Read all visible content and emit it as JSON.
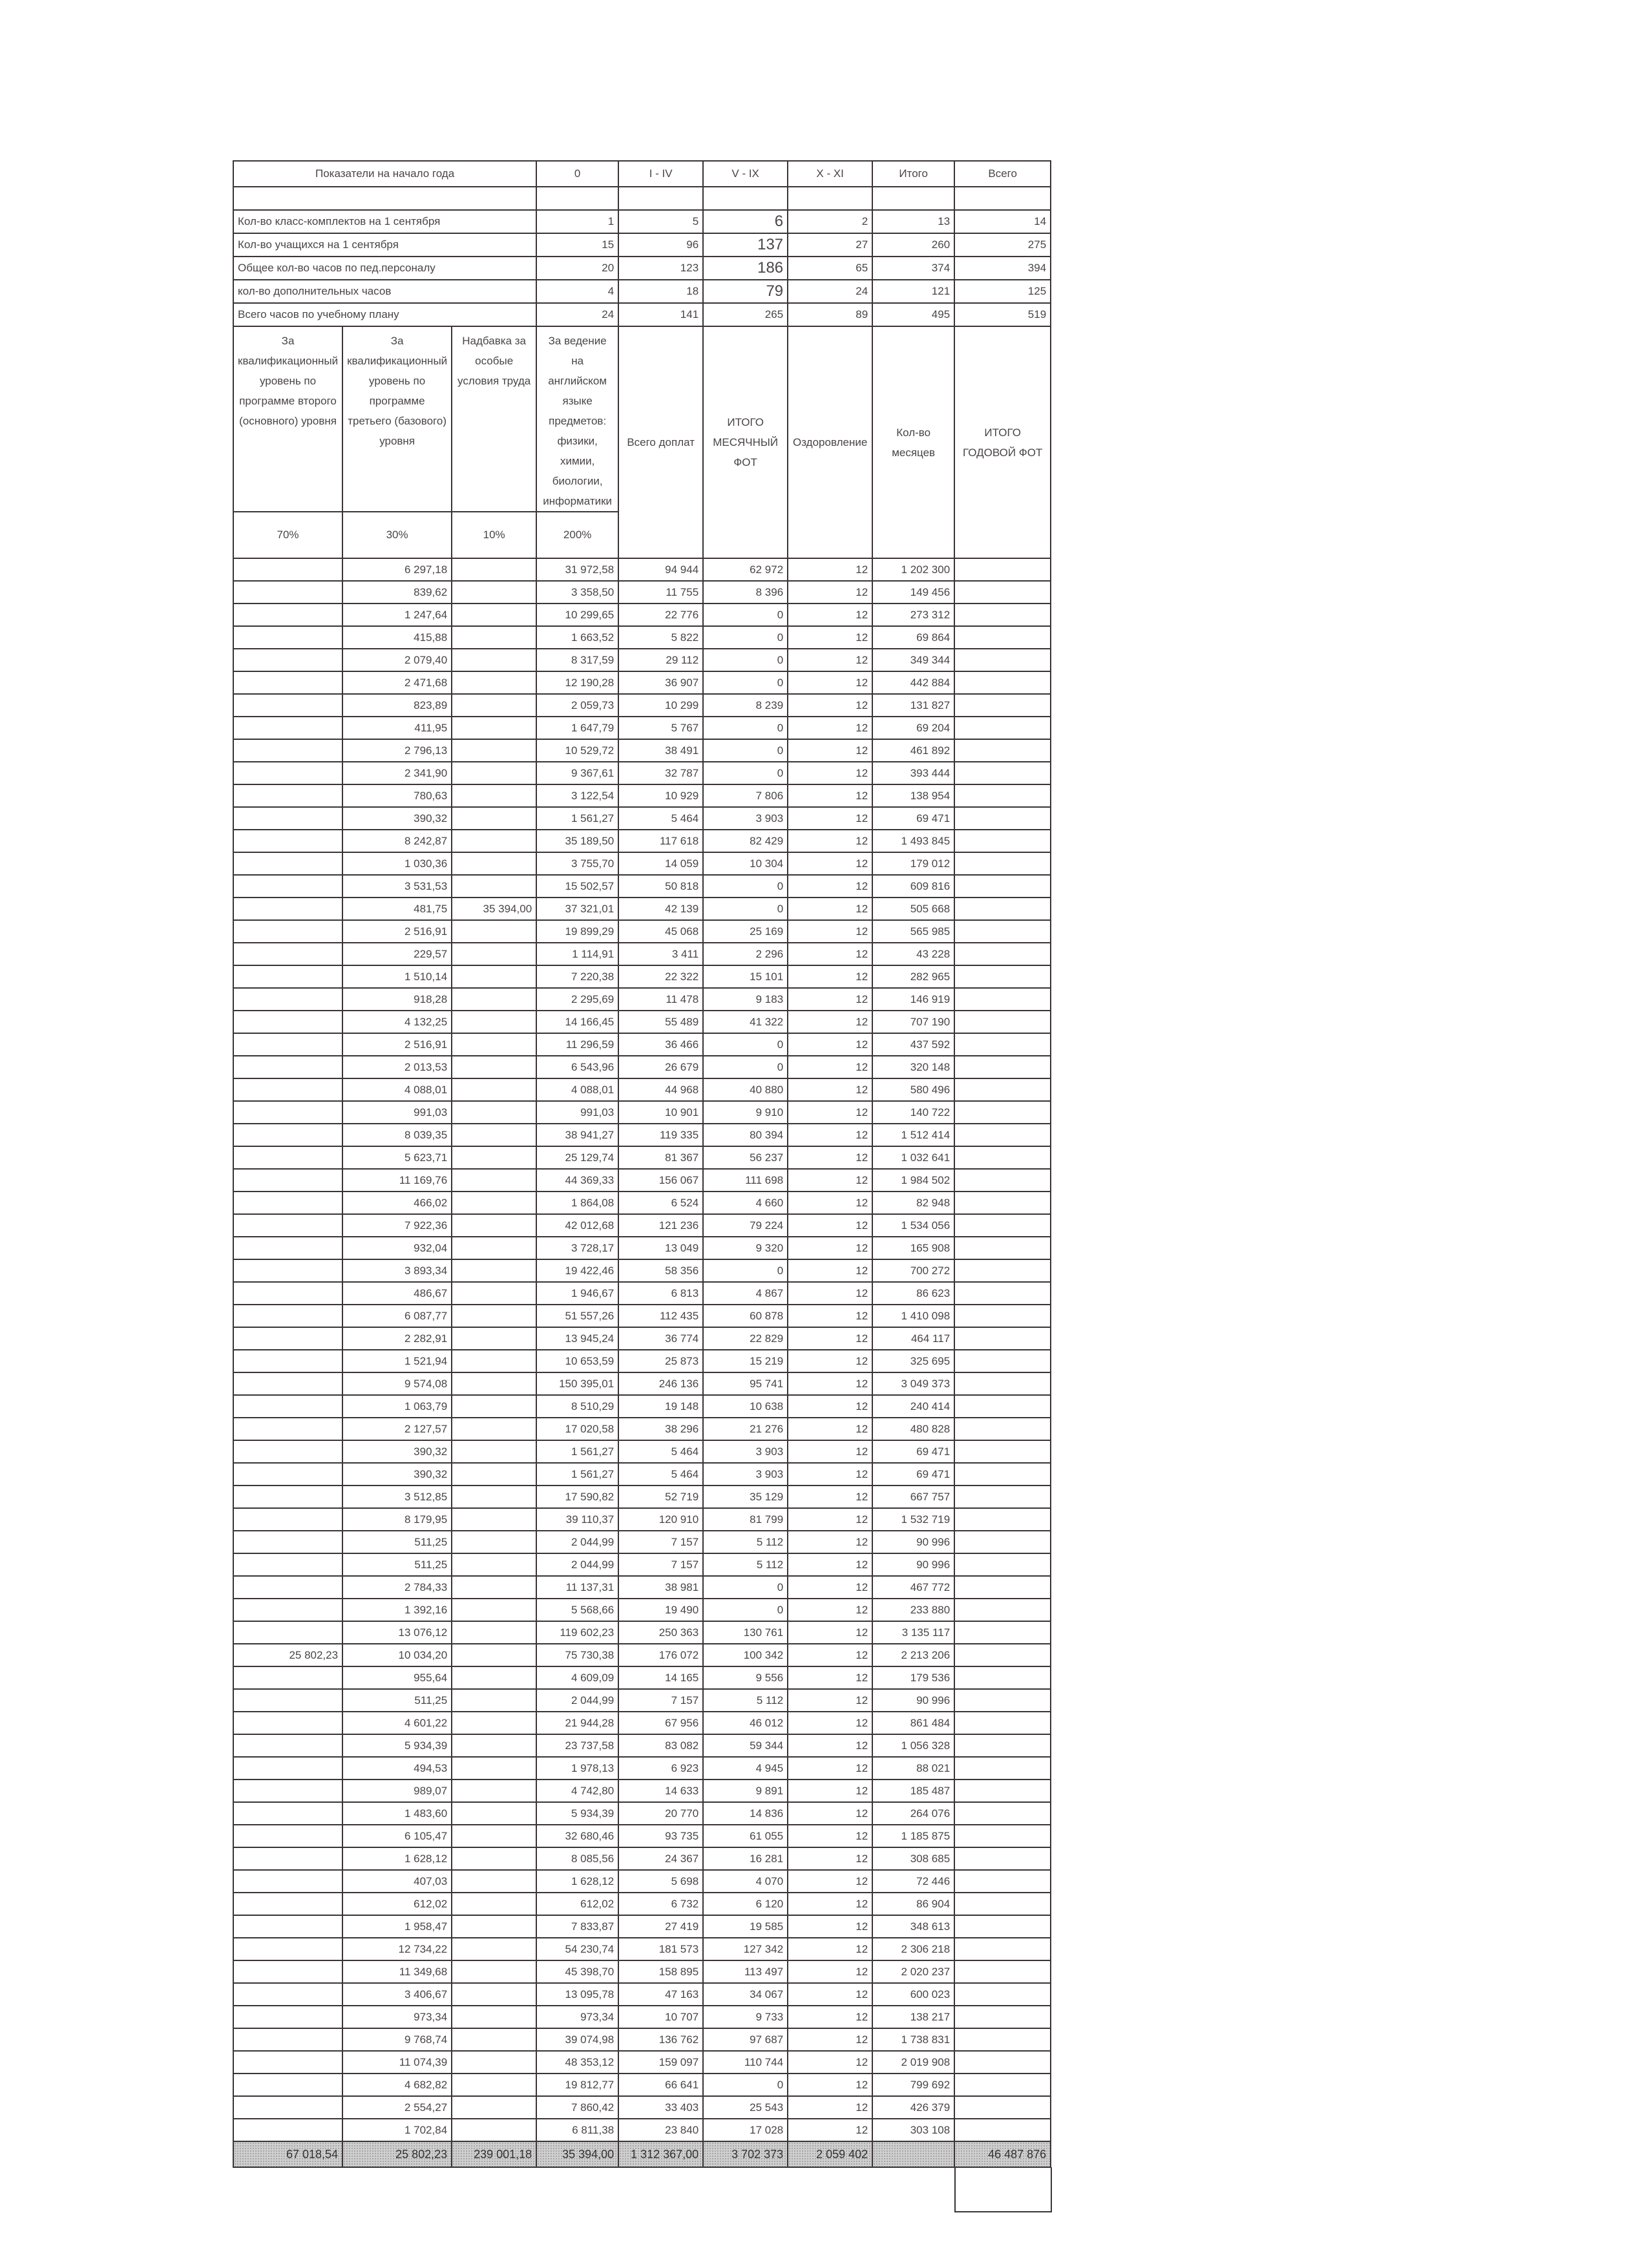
{
  "summary": {
    "headers": [
      "Показатели на начало года",
      "0",
      "I - IV",
      "V - IX",
      "X - XI",
      "Итого",
      "Всего"
    ],
    "rows": [
      {
        "label": "Кол-во класс-комплектов на 1 сентября",
        "values": [
          "1",
          "5",
          "6",
          "2",
          "13",
          "14"
        ]
      },
      {
        "label": "Кол-во учащихся на 1 сентября",
        "values": [
          "15",
          "96",
          "137",
          "27",
          "260",
          "275"
        ]
      },
      {
        "label": "Общее кол-во часов по пед.персоналу",
        "values": [
          "20",
          "123",
          "186",
          "65",
          "374",
          "394"
        ]
      },
      {
        "label": "кол-во дополнительных часов",
        "values": [
          "4",
          "18",
          "79",
          "24",
          "121",
          "125"
        ]
      },
      {
        "label": "Всего часов по учебному плану",
        "values": [
          "24",
          "141",
          "265",
          "89",
          "495",
          "519"
        ]
      }
    ]
  },
  "columns": [
    {
      "header": "За квалификационный уровень по программе второго (основного) уровня",
      "percent": "70%"
    },
    {
      "header": "За квалификационный уровень по программе третьего (базового) уровня",
      "percent": "30%"
    },
    {
      "header": "Надбавка за особые условия труда",
      "percent": "10%"
    },
    {
      "header": "За ведение на английском языке предметов: физики, химии, биологии, информатики",
      "percent": "200%"
    },
    {
      "header": "Всего доплат"
    },
    {
      "header": "ИТОГО МЕСЯЧНЫЙ ФОТ"
    },
    {
      "header": "Оздоровление"
    },
    {
      "header": "Кол-во месяцев"
    },
    {
      "header": "ИТОГО ГОДОВОЙ ФОТ"
    }
  ],
  "rows": [
    [
      "",
      "6 297,18",
      "",
      "31 972,58",
      "94 944",
      "62 972",
      "12",
      "1 202 300",
      ""
    ],
    [
      "",
      "839,62",
      "",
      "3 358,50",
      "11 755",
      "8 396",
      "12",
      "149 456",
      ""
    ],
    [
      "",
      "1 247,64",
      "",
      "10 299,65",
      "22 776",
      "0",
      "12",
      "273 312",
      ""
    ],
    [
      "",
      "415,88",
      "",
      "1 663,52",
      "5 822",
      "0",
      "12",
      "69 864",
      ""
    ],
    [
      "",
      "2 079,40",
      "",
      "8 317,59",
      "29 112",
      "0",
      "12",
      "349 344",
      ""
    ],
    [
      "",
      "2 471,68",
      "",
      "12 190,28",
      "36 907",
      "0",
      "12",
      "442 884",
      ""
    ],
    [
      "",
      "823,89",
      "",
      "2 059,73",
      "10 299",
      "8 239",
      "12",
      "131 827",
      ""
    ],
    [
      "",
      "411,95",
      "",
      "1 647,79",
      "5 767",
      "0",
      "12",
      "69 204",
      ""
    ],
    [
      "",
      "2 796,13",
      "",
      "10 529,72",
      "38 491",
      "0",
      "12",
      "461 892",
      ""
    ],
    [
      "",
      "2 341,90",
      "",
      "9 367,61",
      "32 787",
      "0",
      "12",
      "393 444",
      ""
    ],
    [
      "",
      "780,63",
      "",
      "3 122,54",
      "10 929",
      "7 806",
      "12",
      "138 954",
      ""
    ],
    [
      "",
      "390,32",
      "",
      "1 561,27",
      "5 464",
      "3 903",
      "12",
      "69 471",
      ""
    ],
    [
      "",
      "8 242,87",
      "",
      "35 189,50",
      "117 618",
      "82 429",
      "12",
      "1 493 845",
      ""
    ],
    [
      "",
      "1 030,36",
      "",
      "3 755,70",
      "14 059",
      "10 304",
      "12",
      "179 012",
      ""
    ],
    [
      "",
      "3 531,53",
      "",
      "15 502,57",
      "50 818",
      "0",
      "12",
      "609 816",
      ""
    ],
    [
      "",
      "481,75",
      "35 394,00",
      "37 321,01",
      "42 139",
      "0",
      "12",
      "505 668",
      ""
    ],
    [
      "",
      "2 516,91",
      "",
      "19 899,29",
      "45 068",
      "25 169",
      "12",
      "565 985",
      ""
    ],
    [
      "",
      "229,57",
      "",
      "1 114,91",
      "3 411",
      "2 296",
      "12",
      "43 228",
      ""
    ],
    [
      "",
      "1 510,14",
      "",
      "7 220,38",
      "22 322",
      "15 101",
      "12",
      "282 965",
      ""
    ],
    [
      "",
      "918,28",
      "",
      "2 295,69",
      "11 478",
      "9 183",
      "12",
      "146 919",
      ""
    ],
    [
      "",
      "4 132,25",
      "",
      "14 166,45",
      "55 489",
      "41 322",
      "12",
      "707 190",
      ""
    ],
    [
      "",
      "2 516,91",
      "",
      "11 296,59",
      "36 466",
      "0",
      "12",
      "437 592",
      ""
    ],
    [
      "",
      "2 013,53",
      "",
      "6 543,96",
      "26 679",
      "0",
      "12",
      "320 148",
      ""
    ],
    [
      "",
      "4 088,01",
      "",
      "4 088,01",
      "44 968",
      "40 880",
      "12",
      "580 496",
      ""
    ],
    [
      "",
      "991,03",
      "",
      "991,03",
      "10 901",
      "9 910",
      "12",
      "140 722",
      ""
    ],
    [
      "",
      "8 039,35",
      "",
      "38 941,27",
      "119 335",
      "80 394",
      "12",
      "1 512 414",
      ""
    ],
    [
      "",
      "5 623,71",
      "",
      "25 129,74",
      "81 367",
      "56 237",
      "12",
      "1 032 641",
      ""
    ],
    [
      "",
      "11 169,76",
      "",
      "44 369,33",
      "156 067",
      "111 698",
      "12",
      "1 984 502",
      ""
    ],
    [
      "",
      "466,02",
      "",
      "1 864,08",
      "6 524",
      "4 660",
      "12",
      "82 948",
      ""
    ],
    [
      "",
      "7 922,36",
      "",
      "42 012,68",
      "121 236",
      "79 224",
      "12",
      "1 534 056",
      ""
    ],
    [
      "",
      "932,04",
      "",
      "3 728,17",
      "13 049",
      "9 320",
      "12",
      "165 908",
      ""
    ],
    [
      "",
      "3 893,34",
      "",
      "19 422,46",
      "58 356",
      "0",
      "12",
      "700 272",
      ""
    ],
    [
      "",
      "486,67",
      "",
      "1 946,67",
      "6 813",
      "4 867",
      "12",
      "86 623",
      ""
    ],
    [
      "",
      "6 087,77",
      "",
      "51 557,26",
      "112 435",
      "60 878",
      "12",
      "1 410 098",
      ""
    ],
    [
      "",
      "2 282,91",
      "",
      "13 945,24",
      "36 774",
      "22 829",
      "12",
      "464 117",
      ""
    ],
    [
      "",
      "1 521,94",
      "",
      "10 653,59",
      "25 873",
      "15 219",
      "12",
      "325 695",
      ""
    ],
    [
      "",
      "9 574,08",
      "",
      "150 395,01",
      "246 136",
      "95 741",
      "12",
      "3 049 373",
      ""
    ],
    [
      "",
      "1 063,79",
      "",
      "8 510,29",
      "19 148",
      "10 638",
      "12",
      "240 414",
      ""
    ],
    [
      "",
      "2 127,57",
      "",
      "17 020,58",
      "38 296",
      "21 276",
      "12",
      "480 828",
      ""
    ],
    [
      "",
      "390,32",
      "",
      "1 561,27",
      "5 464",
      "3 903",
      "12",
      "69 471",
      ""
    ],
    [
      "",
      "390,32",
      "",
      "1 561,27",
      "5 464",
      "3 903",
      "12",
      "69 471",
      ""
    ],
    [
      "",
      "3 512,85",
      "",
      "17 590,82",
      "52 719",
      "35 129",
      "12",
      "667 757",
      ""
    ],
    [
      "",
      "8 179,95",
      "",
      "39 110,37",
      "120 910",
      "81 799",
      "12",
      "1 532 719",
      ""
    ],
    [
      "",
      "511,25",
      "",
      "2 044,99",
      "7 157",
      "5 112",
      "12",
      "90 996",
      ""
    ],
    [
      "",
      "511,25",
      "",
      "2 044,99",
      "7 157",
      "5 112",
      "12",
      "90 996",
      ""
    ],
    [
      "",
      "2 784,33",
      "",
      "11 137,31",
      "38 981",
      "0",
      "12",
      "467 772",
      ""
    ],
    [
      "",
      "1 392,16",
      "",
      "5 568,66",
      "19 490",
      "0",
      "12",
      "233 880",
      ""
    ],
    [
      "",
      "13 076,12",
      "",
      "119 602,23",
      "250 363",
      "130 761",
      "12",
      "3 135 117",
      ""
    ],
    [
      "25 802,23",
      "10 034,20",
      "",
      "75 730,38",
      "176 072",
      "100 342",
      "12",
      "2 213 206",
      ""
    ],
    [
      "",
      "955,64",
      "",
      "4 609,09",
      "14 165",
      "9 556",
      "12",
      "179 536",
      ""
    ],
    [
      "",
      "511,25",
      "",
      "2 044,99",
      "7 157",
      "5 112",
      "12",
      "90 996",
      ""
    ],
    [
      "",
      "4 601,22",
      "",
      "21 944,28",
      "67 956",
      "46 012",
      "12",
      "861 484",
      ""
    ],
    [
      "",
      "5 934,39",
      "",
      "23 737,58",
      "83 082",
      "59 344",
      "12",
      "1 056 328",
      ""
    ],
    [
      "",
      "494,53",
      "",
      "1 978,13",
      "6 923",
      "4 945",
      "12",
      "88 021",
      ""
    ],
    [
      "",
      "989,07",
      "",
      "4 742,80",
      "14 633",
      "9 891",
      "12",
      "185 487",
      ""
    ],
    [
      "",
      "1 483,60",
      "",
      "5 934,39",
      "20 770",
      "14 836",
      "12",
      "264 076",
      ""
    ],
    [
      "",
      "6 105,47",
      "",
      "32 680,46",
      "93 735",
      "61 055",
      "12",
      "1 185 875",
      ""
    ],
    [
      "",
      "1 628,12",
      "",
      "8 085,56",
      "24 367",
      "16 281",
      "12",
      "308 685",
      ""
    ],
    [
      "",
      "407,03",
      "",
      "1 628,12",
      "5 698",
      "4 070",
      "12",
      "72 446",
      ""
    ],
    [
      "",
      "612,02",
      "",
      "612,02",
      "6 732",
      "6 120",
      "12",
      "86 904",
      ""
    ],
    [
      "",
      "1 958,47",
      "",
      "7 833,87",
      "27 419",
      "19 585",
      "12",
      "348 613",
      ""
    ],
    [
      "",
      "12 734,22",
      "",
      "54 230,74",
      "181 573",
      "127 342",
      "12",
      "2 306 218",
      ""
    ],
    [
      "",
      "11 349,68",
      "",
      "45 398,70",
      "158 895",
      "113 497",
      "12",
      "2 020 237",
      ""
    ],
    [
      "",
      "3 406,67",
      "",
      "13 095,78",
      "47 163",
      "34 067",
      "12",
      "600 023",
      ""
    ],
    [
      "",
      "973,34",
      "",
      "973,34",
      "10 707",
      "9 733",
      "12",
      "138 217",
      ""
    ],
    [
      "",
      "9 768,74",
      "",
      "39 074,98",
      "136 762",
      "97 687",
      "12",
      "1 738 831",
      ""
    ],
    [
      "",
      "11 074,39",
      "",
      "48 353,12",
      "159 097",
      "110 744",
      "12",
      "2 019 908",
      ""
    ],
    [
      "",
      "4 682,82",
      "",
      "19 812,77",
      "66 641",
      "0",
      "12",
      "799 692",
      ""
    ],
    [
      "",
      "2 554,27",
      "",
      "7 860,42",
      "33 403",
      "25 543",
      "12",
      "426 379",
      ""
    ],
    [
      "",
      "1 702,84",
      "",
      "6 811,38",
      "23 840",
      "17 028",
      "12",
      "303 108",
      ""
    ]
  ],
  "totals": [
    "67 018,54",
    "25 802,23",
    "239 001,18",
    "35 394,00",
    "1 312 367,00",
    "3 702 373",
    "2 059 402",
    "",
    "46 487 876"
  ]
}
